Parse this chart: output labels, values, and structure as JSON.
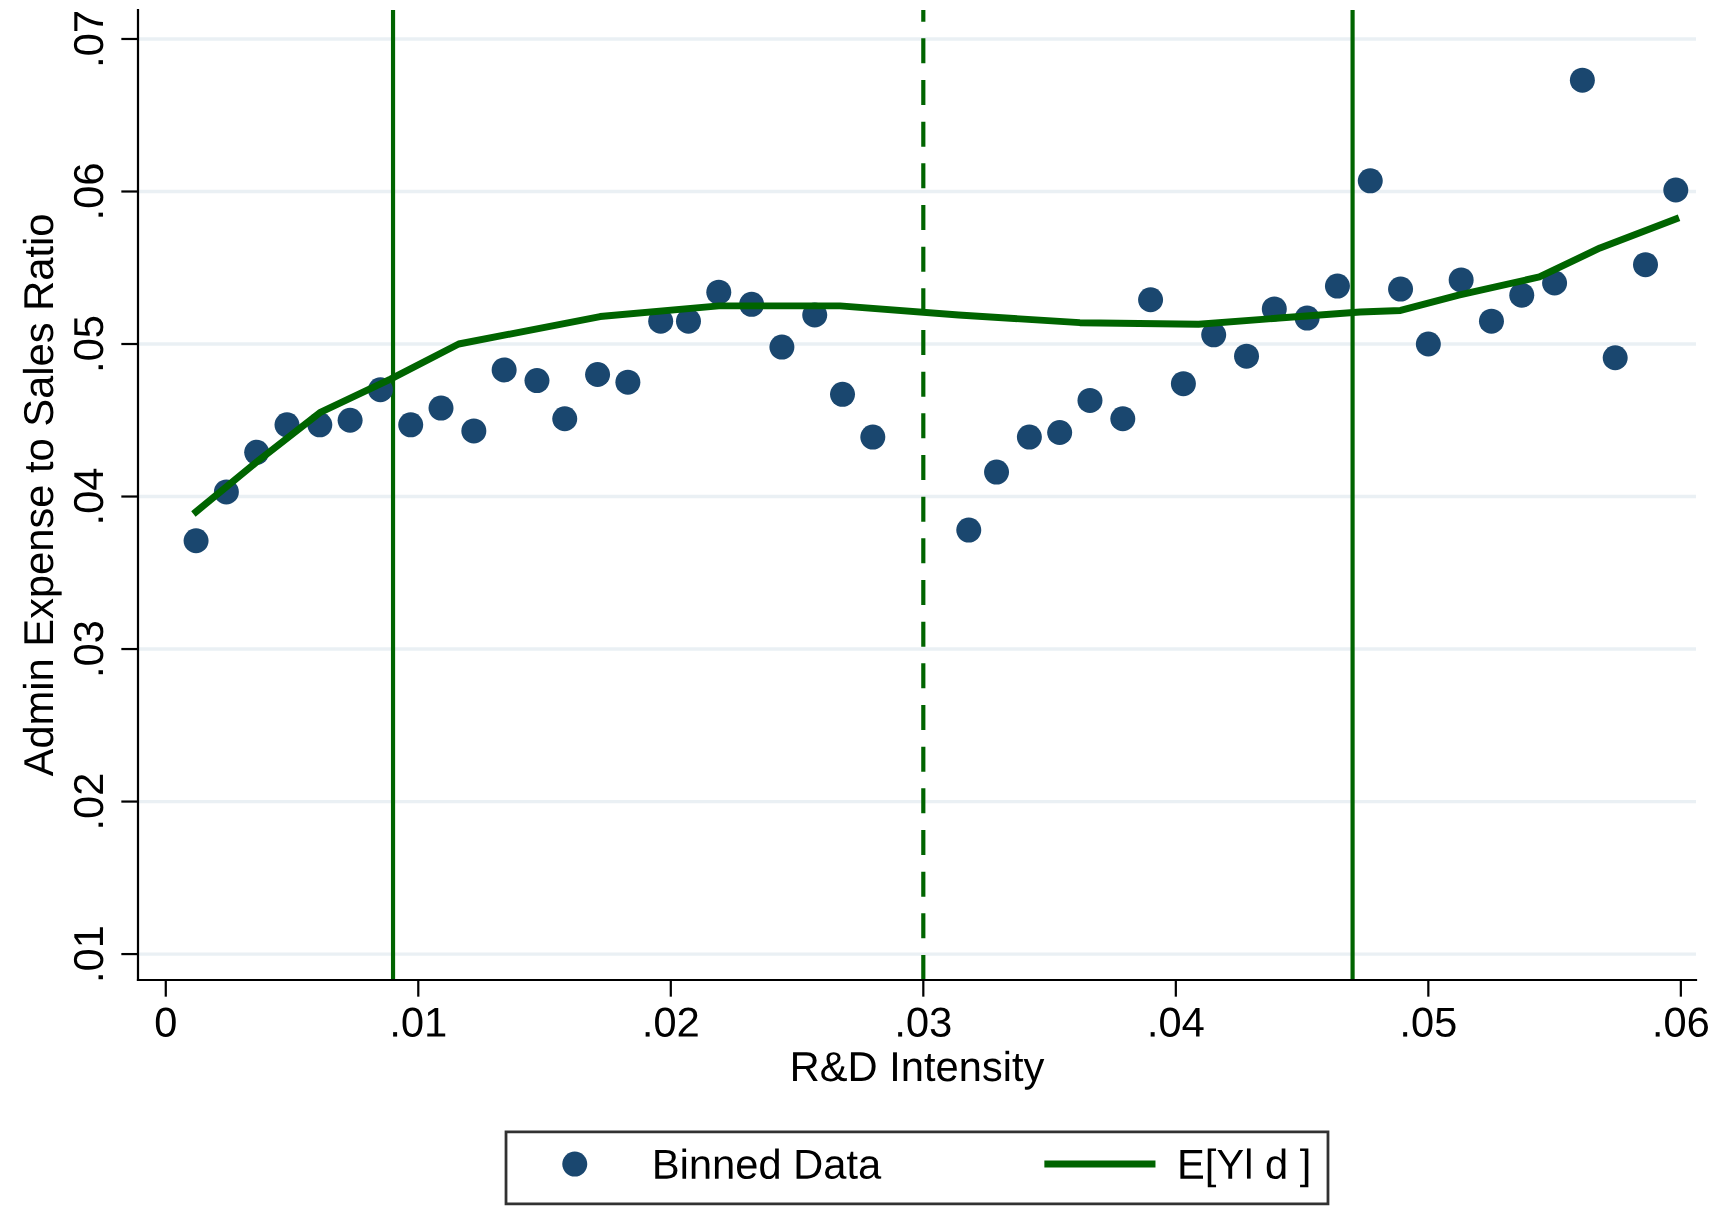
{
  "chart_data": {
    "type": "scatter",
    "xlabel": "R&D Intensity",
    "ylabel": "Admin Expense to Sales Ratio",
    "xlim": [
      -0.0011,
      0.0606
    ],
    "ylim": [
      0.0083,
      0.0719
    ],
    "xticks": [
      0,
      {
        "value": 0.01,
        "label": ".01"
      },
      {
        "value": 0.02,
        "label": ".02"
      },
      {
        "value": 0.03,
        "label": ".03"
      },
      {
        "value": 0.04,
        "label": ".04"
      },
      {
        "value": 0.05,
        "label": ".05"
      },
      {
        "value": 0.06,
        "label": ".06"
      }
    ],
    "yticks": [
      {
        "value": 0.01,
        "label": ".01"
      },
      {
        "value": 0.02,
        "label": ".02"
      },
      {
        "value": 0.03,
        "label": ".03"
      },
      {
        "value": 0.04,
        "label": ".04"
      },
      {
        "value": 0.05,
        "label": ".05"
      },
      {
        "value": 0.06,
        "label": ".06"
      },
      {
        "value": 0.07,
        "label": ".07"
      }
    ],
    "grid": "y",
    "legend": "bottom",
    "series": [
      {
        "name": "Binned Data",
        "color": "#1a476f",
        "marker": "circle",
        "x": [
          0.0012,
          0.0024,
          0.0036,
          0.0048,
          0.0061,
          0.0073,
          0.0085,
          0.0097,
          0.0109,
          0.0122,
          0.0134,
          0.0147,
          0.0158,
          0.0171,
          0.0183,
          0.0196,
          0.0207,
          0.0219,
          0.0232,
          0.0244,
          0.0257,
          0.0268,
          0.028,
          0.0318,
          0.0329,
          0.0342,
          0.0354,
          0.0366,
          0.0379,
          0.039,
          0.0403,
          0.0415,
          0.0428,
          0.0439,
          0.0452,
          0.0464,
          0.0477,
          0.0489,
          0.05,
          0.0513,
          0.0525,
          0.0537,
          0.055,
          0.0561,
          0.0574,
          0.0586,
          0.0598
        ],
        "values": [
          0.0371,
          0.0403,
          0.0429,
          0.0447,
          0.0447,
          0.045,
          0.047,
          0.0447,
          0.0458,
          0.0443,
          0.0483,
          0.0476,
          0.0451,
          0.048,
          0.0475,
          0.0515,
          0.0515,
          0.0534,
          0.0526,
          0.0498,
          0.0519,
          0.0467,
          0.0439,
          0.0378,
          0.0416,
          0.0439,
          0.0442,
          0.0463,
          0.0451,
          0.0529,
          0.0474,
          0.0506,
          0.0492,
          0.0523,
          0.0517,
          0.0538,
          0.0607,
          0.0536,
          0.05,
          0.0542,
          0.0515,
          0.0532,
          0.054,
          0.0673,
          0.0491,
          0.0552,
          0.0601
        ]
      },
      {
        "name": "E[Yl d ]",
        "type": "line",
        "color": "#006400",
        "line_style": "solid",
        "x": [
          0.0012,
          0.0037,
          0.0061,
          0.0089,
          0.0116,
          0.0172,
          0.0219,
          0.0267,
          0.0314,
          0.0362,
          0.0409,
          0.0441,
          0.0473,
          0.0489,
          0.0512,
          0.0544,
          0.0568,
          0.0598
        ],
        "values": [
          0.039,
          0.0424,
          0.0455,
          0.0477,
          0.05,
          0.0518,
          0.0525,
          0.0525,
          0.0519,
          0.0514,
          0.0513,
          0.0517,
          0.0521,
          0.0522,
          0.0532,
          0.0544,
          0.0563,
          0.0582
        ]
      }
    ],
    "ref_lines": [
      {
        "axis": "x",
        "value": 0.009,
        "color": "#006400",
        "line_style": "solid"
      },
      {
        "axis": "x",
        "value": 0.03,
        "color": "#006400",
        "line_style": "dashed"
      },
      {
        "axis": "x",
        "value": 0.047,
        "color": "#006400",
        "line_style": "solid"
      }
    ]
  }
}
